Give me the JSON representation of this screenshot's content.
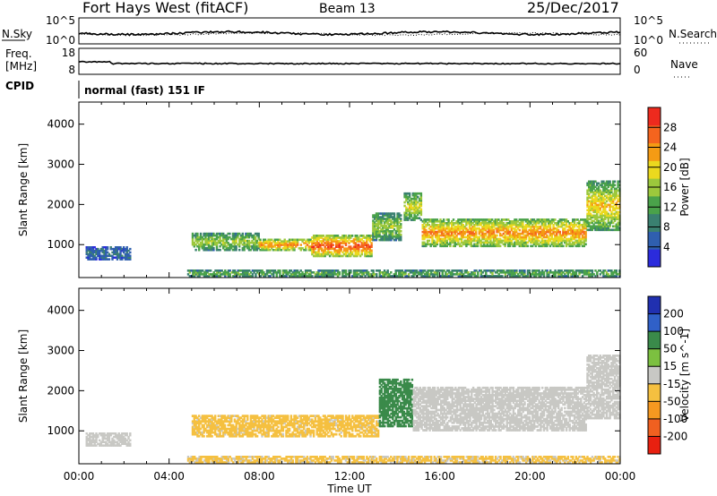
{
  "header": {
    "title": "Fort Hays West (fitACF)",
    "beam": "Beam 13",
    "date": "25/Dec/2017"
  },
  "top_panels": {
    "nsky_label": "N.Sky",
    "nsky_ticks": [
      "10^5",
      "10^0"
    ],
    "nsearch_label": "N.Search",
    "nsearch_ticks": [
      "10^5",
      "10^0"
    ],
    "freq_label": "Freq.",
    "freq_unit": "[MHz]",
    "freq_ticks": [
      "18",
      "8"
    ],
    "nave_label": "Nave",
    "nave_ticks": [
      "60",
      "0"
    ],
    "cpid_label": "CPID",
    "cpid_text": "normal (fast) 151 IF"
  },
  "colors": {
    "power": [
      "#2b2bdc",
      "#2f5faf",
      "#3a8070",
      "#4aa24a",
      "#9cc83c",
      "#ebd91e",
      "#f59b14",
      "#f5641e",
      "#ee2a1e"
    ],
    "velocity": [
      "#2030b0",
      "#3060c8",
      "#3a8a4a",
      "#7cc040",
      "#c8c8c4",
      "#f5c040",
      "#f59820",
      "#f06020",
      "#e82010"
    ]
  },
  "chart_data": [
    {
      "type": "heatmap",
      "name": "power",
      "xlabel": "Time UT",
      "ylabel": "Slant Range [km]",
      "x_ticks": [
        "00:00",
        "04:00",
        "08:00",
        "12:00",
        "16:00",
        "20:00",
        "00:00"
      ],
      "xlim": [
        0,
        24
      ],
      "ylim": [
        180,
        4550
      ],
      "y_ticks": [
        1000,
        2000,
        3000,
        4000
      ],
      "colorbar_label": "Power [dB]",
      "colorbar_ticks": [
        4,
        8,
        12,
        16,
        20,
        24,
        28
      ],
      "clim": [
        0,
        32
      ],
      "regions": [
        {
          "t0": 0.3,
          "t1": 2.3,
          "r0": 620,
          "r1": 960,
          "peak": 6
        },
        {
          "t0": 5.0,
          "t1": 8.0,
          "r0": 850,
          "r1": 1300,
          "peak": 17
        },
        {
          "t0": 8.0,
          "t1": 10.3,
          "r0": 850,
          "r1": 1150,
          "peak": 26
        },
        {
          "t0": 10.3,
          "t1": 13.0,
          "r0": 700,
          "r1": 1250,
          "peak": 30
        },
        {
          "t0": 13.0,
          "t1": 14.3,
          "r0": 1100,
          "r1": 1800,
          "peak": 17
        },
        {
          "t0": 14.4,
          "t1": 15.2,
          "r0": 1600,
          "r1": 2300,
          "peak": 20
        },
        {
          "t0": 15.2,
          "t1": 22.5,
          "r0": 950,
          "r1": 1650,
          "peak": 26
        },
        {
          "t0": 22.5,
          "t1": 24.0,
          "r0": 1350,
          "r1": 2600,
          "peak": 22
        },
        {
          "t0": 4.8,
          "t1": 24.0,
          "r0": 200,
          "r1": 380,
          "peak": 14
        }
      ]
    },
    {
      "type": "heatmap",
      "name": "velocity",
      "xlabel": "Time UT",
      "ylabel": "Slant Range [km]",
      "x_ticks": [
        "00:00",
        "04:00",
        "08:00",
        "12:00",
        "16:00",
        "20:00",
        "00:00"
      ],
      "xlim": [
        0,
        24
      ],
      "ylim": [
        180,
        4550
      ],
      "y_ticks": [
        1000,
        2000,
        3000,
        4000
      ],
      "colorbar_label": "Velocity [m s^-1]",
      "colorbar_ticks": [
        "200",
        "100",
        "50",
        "15",
        "-15",
        "-50",
        "-100",
        "-200"
      ],
      "regions": [
        {
          "t0": 0.3,
          "t1": 2.3,
          "r0": 620,
          "r1": 960,
          "velocity": 0
        },
        {
          "t0": 5.0,
          "t1": 13.3,
          "r0": 850,
          "r1": 1400,
          "velocity": -45
        },
        {
          "t0": 13.3,
          "t1": 14.8,
          "r0": 1100,
          "r1": 2300,
          "velocity": 55
        },
        {
          "t0": 14.8,
          "t1": 22.5,
          "r0": 1000,
          "r1": 2100,
          "velocity": 0
        },
        {
          "t0": 22.5,
          "t1": 24.0,
          "r0": 1300,
          "r1": 2900,
          "velocity": 0
        },
        {
          "t0": 4.8,
          "t1": 24.0,
          "r0": 200,
          "r1": 380,
          "velocity": -40
        }
      ]
    }
  ]
}
